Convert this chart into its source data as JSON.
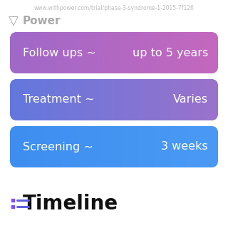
{
  "title": "Timeline",
  "background_color": "#ffffff",
  "rows": [
    {
      "label_left": "Screening ~",
      "label_right": "3 weeks",
      "gradient_start": "#3d8ef0",
      "gradient_end": "#4a9af5"
    },
    {
      "label_left": "Treatment ~",
      "label_right": "Varies",
      "gradient_start": "#6278dd",
      "gradient_end": "#9b72cc"
    },
    {
      "label_left": "Follow ups ~",
      "label_right": "up to 5 years",
      "gradient_start": "#a068c8",
      "gradient_end": "#c468be"
    }
  ],
  "icon_dot_color": "#7c4dff",
  "icon_line_color": "#6060e0",
  "watermark_text": "Power",
  "watermark_color": "#aaaaaa",
  "url_text": "www.withpower.com/trial/phase-3-syndrome-1-2015-7f126",
  "url_color": "#bbbbbb",
  "title_color": "#111111",
  "row_text_color": "#ffffff",
  "font_size_title": 20,
  "font_size_row": 11.5,
  "font_size_watermark": 11,
  "font_size_url": 5.5
}
